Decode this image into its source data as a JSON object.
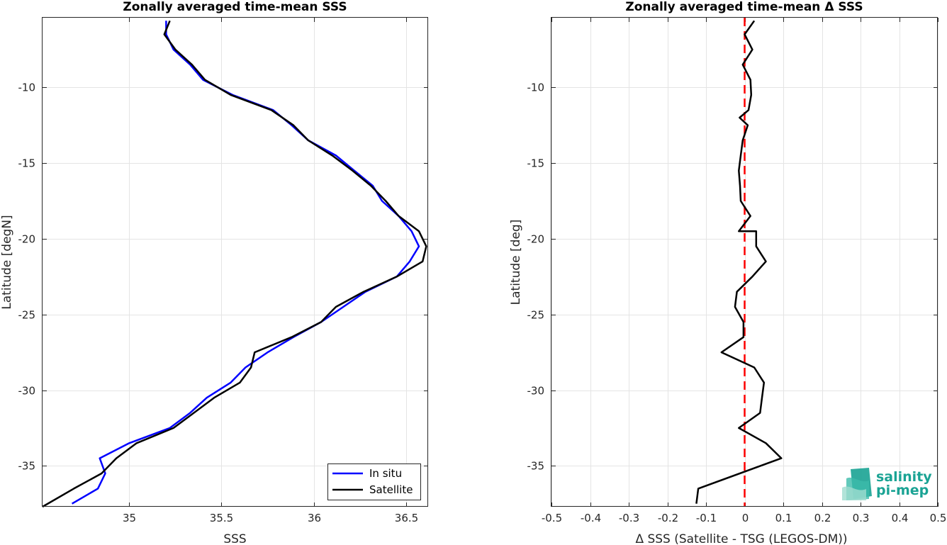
{
  "chart_data": [
    {
      "type": "line",
      "title": "Zonally averaged time-mean SSS",
      "xlabel": "SSS",
      "ylabel": "Latitude [degN]",
      "xlim": [
        34.53,
        36.62
      ],
      "ylim": [
        -37.7,
        -5.4
      ],
      "xticks": [
        35,
        35.5,
        36,
        36.5
      ],
      "xtick_labels": [
        "35",
        "35.5",
        "36",
        "36.5"
      ],
      "yticks": [
        -10,
        -15,
        -20,
        -25,
        -30,
        -35
      ],
      "ytick_labels": [
        "-10",
        "-15",
        "-20",
        "-25",
        "-30",
        "-35"
      ],
      "grid": true,
      "legend_position": "bottom-right",
      "series": [
        {
          "name": "In situ",
          "color": "#0000ff",
          "points": [
            [
              35.2,
              -5.6
            ],
            [
              35.2,
              -6.5
            ],
            [
              35.24,
              -7.5
            ],
            [
              35.33,
              -8.5
            ],
            [
              35.4,
              -9.5
            ],
            [
              35.56,
              -10.5
            ],
            [
              35.78,
              -11.5
            ],
            [
              35.88,
              -12.5
            ],
            [
              35.97,
              -13.5
            ],
            [
              36.12,
              -14.5
            ],
            [
              36.22,
              -15.5
            ],
            [
              36.32,
              -16.5
            ],
            [
              36.37,
              -17.5
            ],
            [
              36.46,
              -18.5
            ],
            [
              36.53,
              -19.5
            ],
            [
              36.57,
              -20.5
            ],
            [
              36.52,
              -21.5
            ],
            [
              36.45,
              -22.5
            ],
            [
              36.28,
              -23.5
            ],
            [
              36.16,
              -24.5
            ],
            [
              36.04,
              -25.5
            ],
            [
              35.89,
              -26.5
            ],
            [
              35.75,
              -27.5
            ],
            [
              35.63,
              -28.5
            ],
            [
              35.55,
              -29.5
            ],
            [
              35.42,
              -30.5
            ],
            [
              35.33,
              -31.5
            ],
            [
              35.22,
              -32.5
            ],
            [
              35.0,
              -33.5
            ],
            [
              34.84,
              -34.5
            ],
            [
              34.87,
              -35.5
            ],
            [
              34.83,
              -36.5
            ],
            [
              34.69,
              -37.5
            ]
          ]
        },
        {
          "name": "Satellite",
          "color": "#000000",
          "points": [
            [
              35.22,
              -5.6
            ],
            [
              35.19,
              -6.5
            ],
            [
              35.25,
              -7.5
            ],
            [
              35.34,
              -8.5
            ],
            [
              35.41,
              -9.5
            ],
            [
              35.55,
              -10.5
            ],
            [
              35.77,
              -11.5
            ],
            [
              35.89,
              -12.5
            ],
            [
              35.97,
              -13.5
            ],
            [
              36.1,
              -14.5
            ],
            [
              36.21,
              -15.5
            ],
            [
              36.31,
              -16.5
            ],
            [
              36.39,
              -17.5
            ],
            [
              36.46,
              -18.5
            ],
            [
              36.57,
              -19.5
            ],
            [
              36.61,
              -20.5
            ],
            [
              36.59,
              -21.5
            ],
            [
              36.45,
              -22.5
            ],
            [
              36.27,
              -23.5
            ],
            [
              36.12,
              -24.5
            ],
            [
              36.04,
              -25.5
            ],
            [
              35.88,
              -26.5
            ],
            [
              35.68,
              -27.5
            ],
            [
              35.66,
              -28.5
            ],
            [
              35.6,
              -29.5
            ],
            [
              35.46,
              -30.5
            ],
            [
              35.35,
              -31.5
            ],
            [
              35.24,
              -32.5
            ],
            [
              35.04,
              -33.5
            ],
            [
              34.93,
              -34.5
            ],
            [
              34.85,
              -35.5
            ],
            [
              34.7,
              -36.5
            ],
            [
              34.53,
              -37.7
            ]
          ]
        }
      ]
    },
    {
      "type": "line",
      "title": "Zonally averaged time-mean Δ SSS",
      "xlabel": "Δ SSS (Satellite - TSG (LEGOS-DM))",
      "ylabel": "Latitude [deg]",
      "xlim": [
        -0.5,
        0.5
      ],
      "ylim": [
        -37.7,
        -5.4
      ],
      "xticks": [
        -0.5,
        -0.4,
        -0.3,
        -0.2,
        -0.1,
        0,
        0.1,
        0.2,
        0.3,
        0.4,
        0.5
      ],
      "xtick_labels": [
        "-0.5",
        "-0.4",
        "-0.3",
        "-0.2",
        "-0.1",
        "0",
        "0.1",
        "0.2",
        "0.3",
        "0.4",
        "0.5"
      ],
      "yticks": [
        -10,
        -15,
        -20,
        -25,
        -30,
        -35
      ],
      "ytick_labels": [
        "-10",
        "-15",
        "-20",
        "-25",
        "-30",
        "-35"
      ],
      "grid": true,
      "reference_line": {
        "x": 0,
        "color": "#ff0000",
        "style": "dashed"
      },
      "series": [
        {
          "color": "#000000",
          "points": [
            [
              0.025,
              -5.6
            ],
            [
              0.0,
              -6.5
            ],
            [
              0.02,
              -7.5
            ],
            [
              -0.005,
              -8.5
            ],
            [
              0.015,
              -9.5
            ],
            [
              0.017,
              -10.5
            ],
            [
              0.01,
              -11.5
            ],
            [
              -0.013,
              -12
            ],
            [
              0.008,
              -12.5
            ],
            [
              -0.005,
              -13.5
            ],
            [
              -0.01,
              -14.5
            ],
            [
              -0.015,
              -15.5
            ],
            [
              -0.012,
              -16.5
            ],
            [
              -0.01,
              -17.5
            ],
            [
              0.015,
              -18.5
            ],
            [
              -0.015,
              -19.5
            ],
            [
              0.03,
              -19.5
            ],
            [
              0.03,
              -20.5
            ],
            [
              0.055,
              -21.5
            ],
            [
              0.02,
              -22.5
            ],
            [
              -0.02,
              -23.5
            ],
            [
              -0.025,
              -24.5
            ],
            [
              -0.003,
              -25.5
            ],
            [
              -0.003,
              -26.5
            ],
            [
              -0.06,
              -27.5
            ],
            [
              0.025,
              -28.5
            ],
            [
              0.05,
              -29.5
            ],
            [
              0.045,
              -30.5
            ],
            [
              0.04,
              -31.5
            ],
            [
              -0.015,
              -32.5
            ],
            [
              0.055,
              -33.5
            ],
            [
              0.095,
              -34.5
            ],
            [
              -0.12,
              -36.5
            ],
            [
              -0.125,
              -37.5
            ]
          ]
        }
      ]
    }
  ],
  "logo": {
    "line1": "salinity",
    "line2": "pi-mep"
  }
}
